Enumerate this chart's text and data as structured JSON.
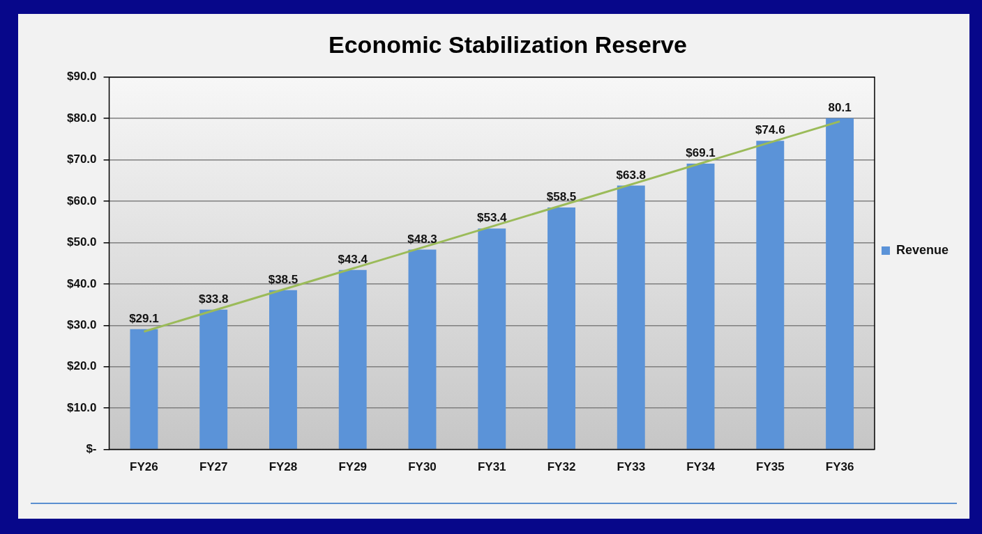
{
  "chart_data": {
    "type": "bar",
    "title": "Economic Stabilization Reserve",
    "categories": [
      "FY26",
      "FY27",
      "FY28",
      "FY29",
      "FY30",
      "FY31",
      "FY32",
      "FY33",
      "FY34",
      "FY35",
      "FY36"
    ],
    "series": [
      {
        "name": "Revenue",
        "color": "#5b93d8",
        "values": [
          29.1,
          33.8,
          38.5,
          43.4,
          48.3,
          53.4,
          58.5,
          63.8,
          69.1,
          74.6,
          80.1
        ],
        "value_labels": [
          "$29.1",
          "$33.8",
          "$38.5",
          "$43.4",
          "$48.3",
          "$53.4",
          "$58.5",
          "$63.8",
          "$69.1",
          "$74.6",
          "80.1"
        ]
      },
      {
        "type": "line",
        "color": "#9bbb59",
        "x": [
          "FY26",
          "FY36"
        ],
        "values": [
          28.5,
          79.3
        ],
        "marker": "none"
      }
    ],
    "ylim": [
      0,
      90
    ],
    "yticks": [
      {
        "value": 0,
        "label": "$-"
      },
      {
        "value": 10,
        "label": "$10.0"
      },
      {
        "value": 20,
        "label": "$20.0"
      },
      {
        "value": 30,
        "label": "$30.0"
      },
      {
        "value": 40,
        "label": "$40.0"
      },
      {
        "value": 50,
        "label": "$50.0"
      },
      {
        "value": 60,
        "label": "$60.0"
      },
      {
        "value": 70,
        "label": "$70.0"
      },
      {
        "value": 80,
        "label": "$80.0"
      },
      {
        "value": 90,
        "label": "$90.0"
      }
    ],
    "grid": "y",
    "legend": "right"
  }
}
